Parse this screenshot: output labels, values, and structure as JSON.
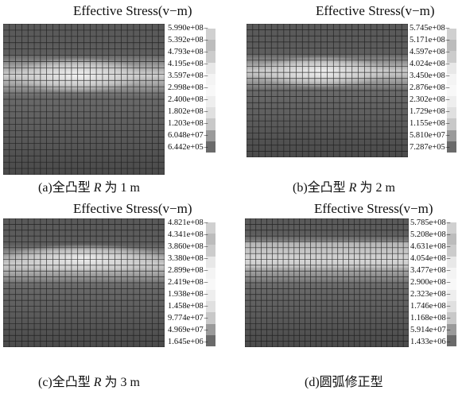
{
  "panels": [
    {
      "title": "Effective Stress(v−m)",
      "legend": [
        "5.990e+08",
        "5.392e+08",
        "4.793e+08",
        "4.195e+08",
        "3.597e+08",
        "2.998e+08",
        "2.400e+08",
        "1.802e+08",
        "1.203e+08",
        "6.048e+07",
        "6.442e+05"
      ],
      "caption": {
        "label": "(a)全凸型 ",
        "var": "R",
        "rest": " 为 1 m"
      }
    },
    {
      "title": "Effective Stress(v−m)",
      "legend": [
        "5.745e+08",
        "5.171e+08",
        "4.597e+08",
        "4.024e+08",
        "3.450e+08",
        "2.876e+08",
        "2.302e+08",
        "1.729e+08",
        "1.155e+08",
        "5.810e+07",
        "7.287e+05"
      ],
      "caption": {
        "label": "(b)全凸型 ",
        "var": "R",
        "rest": " 为 2 m"
      }
    },
    {
      "title": "Effective Stress(v−m)",
      "legend": [
        "4.821e+08",
        "4.341e+08",
        "3.860e+08",
        "3.380e+08",
        "2.899e+08",
        "2.419e+08",
        "1.938e+08",
        "1.458e+08",
        "9.774e+07",
        "4.969e+07",
        "1.645e+06"
      ],
      "caption": {
        "label": "(c)全凸型 ",
        "var": "R",
        "rest": " 为 3 m"
      }
    },
    {
      "title": "Effective Stress(v−m)",
      "legend": [
        "5.785e+08",
        "5.208e+08",
        "4.631e+08",
        "4.054e+08",
        "3.477e+08",
        "2.900e+08",
        "2.323e+08",
        "1.746e+08",
        "1.168e+08",
        "5.914e+07",
        "1.433e+06"
      ],
      "caption": {
        "label": "(d)圆弧修正型",
        "var": "",
        "rest": ""
      }
    }
  ],
  "colors": {
    "band_low": "#4a4a4a",
    "band_high": "#e6e6e6",
    "mesh_line": "#1a1a1a",
    "legend_scale": [
      "#d0d0d0",
      "#bcbcbc",
      "#cccccc",
      "#e8e8e8",
      "#f4f4f4",
      "#f8f8f8",
      "#eeeeee",
      "#e0e0e0",
      "#c8c8c8",
      "#9a9a9a",
      "#6a6a6a"
    ]
  }
}
